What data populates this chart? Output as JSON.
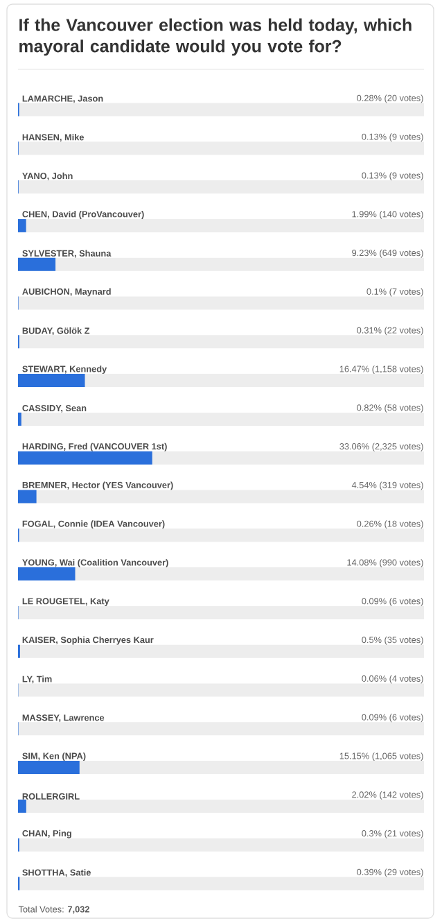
{
  "chart_data": {
    "type": "bar",
    "orientation": "horizontal",
    "title": "If the Vancouver election was held today, which mayoral candidate would you vote for?",
    "categories": [
      "LAMARCHE, Jason",
      "HANSEN, Mike",
      "YANO, John",
      "CHEN, David (ProVancouver)",
      "SYLVESTER, Shauna",
      "AUBICHON, Maynard",
      "BUDAY, Gölök Z",
      "STEWART, Kennedy",
      "CASSIDY, Sean",
      "HARDING, Fred (VANCOUVER 1st)",
      "BREMNER, Hector (YES Vancouver)",
      "FOGAL, Connie (IDEA Vancouver)",
      "YOUNG, Wai (Coalition Vancouver)",
      "LE ROUGETEL, Katy",
      "KAISER, Sophia Cherryes Kaur",
      "LY, Tim",
      "MASSEY, Lawrence",
      "SIM, Ken (NPA)",
      "ROLLERGIRL",
      "CHAN, Ping",
      "SHOTTHA, Satie"
    ],
    "values": [
      0.28,
      0.13,
      0.13,
      1.99,
      9.23,
      0.1,
      0.31,
      16.47,
      0.82,
      33.06,
      4.54,
      0.26,
      14.08,
      0.09,
      0.5,
      0.06,
      0.09,
      15.15,
      2.02,
      0.3,
      0.39
    ],
    "value_labels": [
      "0.28% (20 votes)",
      "0.13% (9 votes)",
      "0.13% (9 votes)",
      "1.99% (140 votes)",
      "9.23% (649 votes)",
      "0.1% (7 votes)",
      "0.31% (22 votes)",
      "16.47% (1,158 votes)",
      "0.82% (58 votes)",
      "33.06% (2,325 votes)",
      "4.54% (319 votes)",
      "0.26% (18 votes)",
      "14.08% (990 votes)",
      "0.09% (6 votes)",
      "0.5% (35 votes)",
      "0.06% (4 votes)",
      "0.09% (6 votes)",
      "15.15% (1,065 votes)",
      "2.02% (142 votes)",
      "0.3% (21 votes)",
      "0.39% (29 votes)"
    ],
    "color": "#2a6fdb",
    "xlim": [
      0,
      100
    ],
    "tick_labels": "y",
    "annotations": [
      "Total Votes: **7,032**"
    ]
  }
}
